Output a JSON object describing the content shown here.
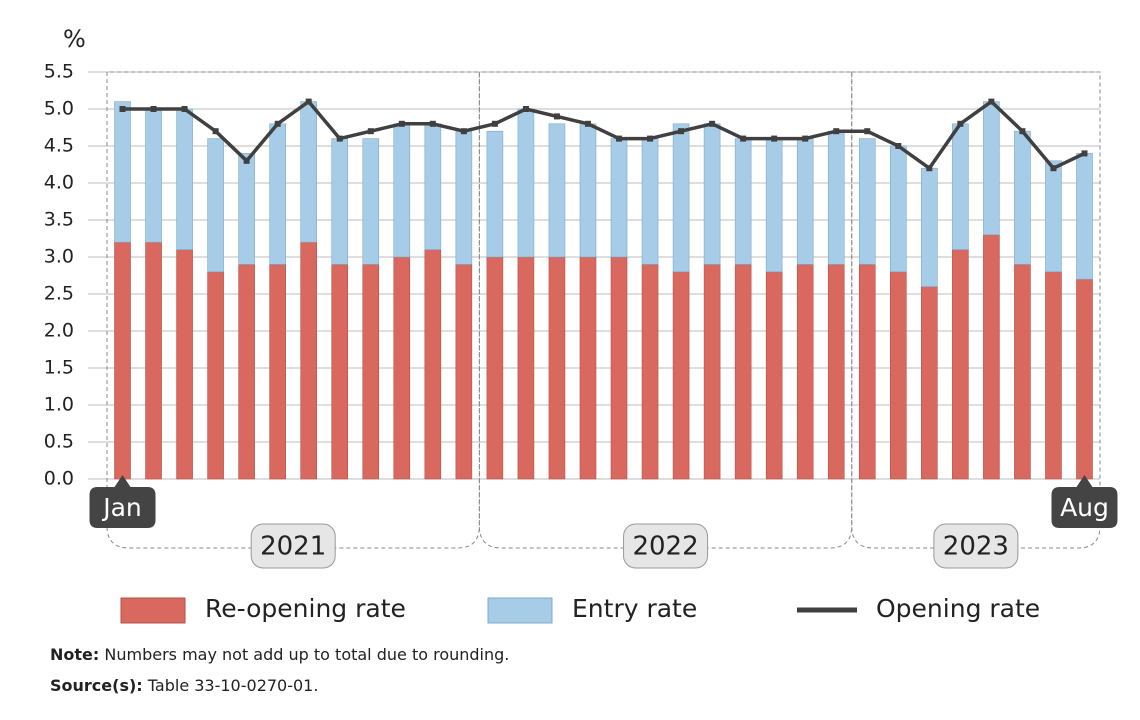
{
  "chart_data": {
    "type": "stacked-bar-line",
    "y_label": "%",
    "categories": [
      "Jan",
      null,
      null,
      null,
      null,
      null,
      null,
      null,
      null,
      null,
      null,
      null,
      null,
      null,
      null,
      null,
      null,
      null,
      null,
      null,
      null,
      null,
      null,
      null,
      null,
      null,
      null,
      null,
      null,
      null,
      null,
      "Aug"
    ],
    "years": [
      "2021",
      "2022",
      "2023"
    ],
    "series": [
      {
        "name": "Re-opening rate",
        "color": "#d9695f",
        "kind": "bar",
        "values": [
          3.2,
          3.2,
          3.1,
          2.8,
          2.9,
          2.9,
          3.2,
          2.9,
          2.9,
          3.0,
          3.1,
          2.9,
          3.0,
          3.0,
          3.0,
          3.0,
          3.0,
          2.9,
          2.8,
          2.9,
          2.9,
          2.8,
          2.9,
          2.9,
          2.9,
          2.8,
          2.6,
          3.1,
          3.3,
          2.9,
          2.8,
          2.7
        ]
      },
      {
        "name": "Entry rate",
        "color": "#a6cce8",
        "kind": "bar",
        "values": [
          1.9,
          1.8,
          1.9,
          1.8,
          1.5,
          1.9,
          1.9,
          1.7,
          1.7,
          1.8,
          1.7,
          1.8,
          1.7,
          2.0,
          1.8,
          1.8,
          1.6,
          1.7,
          2.0,
          1.9,
          1.7,
          1.8,
          1.7,
          1.8,
          1.7,
          1.7,
          1.6,
          1.7,
          1.8,
          1.8,
          1.5,
          1.7
        ]
      },
      {
        "name": "Opening rate",
        "color": "#404040",
        "kind": "line",
        "values": [
          5.0,
          5.0,
          5.0,
          4.7,
          4.3,
          4.8,
          5.1,
          4.6,
          4.7,
          4.8,
          4.8,
          4.7,
          4.8,
          5.0,
          4.9,
          4.8,
          4.6,
          4.6,
          4.7,
          4.8,
          4.6,
          4.6,
          4.6,
          4.7,
          4.7,
          4.5,
          4.2,
          4.8,
          5.1,
          4.7,
          4.2,
          4.4
        ]
      }
    ],
    "ylim": [
      0,
      5.5
    ],
    "yticks": [
      {
        "value": 0,
        "label": "0.0"
      },
      0.5,
      {
        "value": 1,
        "label": "1.0"
      },
      1.5,
      {
        "value": 2,
        "label": "2.0"
      },
      2.5,
      {
        "value": 3,
        "label": "3.0"
      },
      3.5,
      {
        "value": 4,
        "label": "4.0"
      },
      4.5,
      {
        "value": 5,
        "label": "5.0"
      },
      5.5
    ],
    "grid": true,
    "legend": "bottom",
    "note": {
      "label": "Note:",
      "text": "Numbers may not add up to total due to rounding."
    },
    "source": {
      "label": "Source(s):",
      "text": "Table 33-10-0270-01."
    }
  }
}
